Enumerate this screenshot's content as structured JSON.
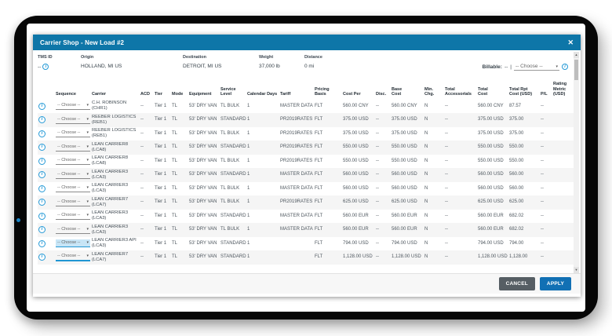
{
  "window": {
    "title": "Carrier Shop - New Load #2"
  },
  "icons": {
    "info": "i",
    "caret": "▾",
    "close": "✕",
    "scroll_up": "▲",
    "scroll_down": "▼"
  },
  "colors": {
    "titlebar": "#0e76a8",
    "accent_blue": "#2499d6",
    "link_blue": "#2196d3",
    "apply_button": "#1170b4",
    "cancel_button": "#565e64",
    "row_alt": "#f5f5f5",
    "dropdown_highlight": "#c7e5f6"
  },
  "summary": {
    "fields": [
      {
        "label": "TMS ID",
        "value": "--"
      },
      {
        "label": "Origin",
        "value": "HOLLAND, MI US"
      },
      {
        "label": "Destination",
        "value": "DETROIT, MI US"
      },
      {
        "label": "Weight",
        "value": "37,000 lb"
      },
      {
        "label": "Distance",
        "value": "0 mi"
      }
    ],
    "billable": {
      "label": "Billable:",
      "value": "--",
      "separator": "|",
      "dropdown": "-- Choose --"
    }
  },
  "table": {
    "choose_label": "-- Choose --",
    "headers": [
      "",
      "Sequence",
      "Carrier",
      "ACD",
      "Tier",
      "Mode",
      "Equipment",
      "Service\nLevel",
      "Calendar Days",
      "Tariff",
      "Pricing Basis",
      "Cost Per",
      "Disc.",
      "Base\nCost",
      "Min. Chg.",
      "Total\nAccessorials",
      "Total\nCost",
      "Total Rpt\nCost (USD)",
      "P/L",
      "Rating\nMetric (USD)"
    ],
    "rows": [
      {
        "carrier": "C.H. ROBINSON",
        "code": "(CHR1)",
        "acd": "--",
        "tier": "Tier 1",
        "mode": "TL",
        "equipment": "53' DRY VAN",
        "service_level": "TL BULK",
        "calendar_days": "1",
        "tariff": "MASTER DATA",
        "pricing_basis": "FLT",
        "cost_per": "560.00 CNY",
        "disc": "--",
        "base_cost": "560.00 CNY",
        "min_chg": "N",
        "total_accessorials": "--",
        "total_cost": "560.00 CNY",
        "total_rpt_cost": "87.57",
        "pl": "--",
        "rating_metric": "",
        "seq_state": "default"
      },
      {
        "carrier": "REEBER LOGISTICS",
        "code": "(REB1)",
        "acd": "--",
        "tier": "Tier 1",
        "mode": "TL",
        "equipment": "53' DRY VAN",
        "service_level": "STANDARD",
        "calendar_days": "1",
        "tariff": "PR2019RATES",
        "pricing_basis": "FLT",
        "cost_per": "375.00 USD",
        "disc": "--",
        "base_cost": "375.00 USD",
        "min_chg": "N",
        "total_accessorials": "--",
        "total_cost": "375.00 USD",
        "total_rpt_cost": "375.00",
        "pl": "--",
        "rating_metric": "",
        "seq_state": "default"
      },
      {
        "carrier": "REEBER LOGISTICS",
        "code": "(REB1)",
        "acd": "--",
        "tier": "Tier 1",
        "mode": "TL",
        "equipment": "53' DRY VAN",
        "service_level": "TL BULK",
        "calendar_days": "1",
        "tariff": "PR2019RATES",
        "pricing_basis": "FLT",
        "cost_per": "375.00 USD",
        "disc": "--",
        "base_cost": "375.00 USD",
        "min_chg": "N",
        "total_accessorials": "--",
        "total_cost": "375.00 USD",
        "total_rpt_cost": "375.00",
        "pl": "--",
        "rating_metric": "",
        "seq_state": "default"
      },
      {
        "carrier": "LEAN CARRIER8",
        "code": "(LCA8)",
        "acd": "--",
        "tier": "Tier 1",
        "mode": "TL",
        "equipment": "53' DRY VAN",
        "service_level": "STANDARD",
        "calendar_days": "1",
        "tariff": "PR2019RATES",
        "pricing_basis": "FLT",
        "cost_per": "550.00 USD",
        "disc": "--",
        "base_cost": "550.00 USD",
        "min_chg": "N",
        "total_accessorials": "--",
        "total_cost": "550.00 USD",
        "total_rpt_cost": "550.00",
        "pl": "--",
        "rating_metric": "",
        "seq_state": "default"
      },
      {
        "carrier": "LEAN CARRIER8",
        "code": "(LCA8)",
        "acd": "--",
        "tier": "Tier 1",
        "mode": "TL",
        "equipment": "53' DRY VAN",
        "service_level": "TL BULK",
        "calendar_days": "1",
        "tariff": "PR2019RATES",
        "pricing_basis": "FLT",
        "cost_per": "550.00 USD",
        "disc": "--",
        "base_cost": "550.00 USD",
        "min_chg": "N",
        "total_accessorials": "--",
        "total_cost": "550.00 USD",
        "total_rpt_cost": "550.00",
        "pl": "--",
        "rating_metric": "",
        "seq_state": "default"
      },
      {
        "carrier": "LEAN CARRIER3",
        "code": "(LCA3)",
        "acd": "--",
        "tier": "Tier 1",
        "mode": "TL",
        "equipment": "53' DRY VAN",
        "service_level": "STANDARD",
        "calendar_days": "1",
        "tariff": "MASTER DATA",
        "pricing_basis": "FLT",
        "cost_per": "560.00 USD",
        "disc": "--",
        "base_cost": "560.00 USD",
        "min_chg": "N",
        "total_accessorials": "--",
        "total_cost": "560.00 USD",
        "total_rpt_cost": "560.00",
        "pl": "--",
        "rating_metric": "",
        "seq_state": "default"
      },
      {
        "carrier": "LEAN CARRIER3",
        "code": "(LCA3)",
        "acd": "--",
        "tier": "Tier 1",
        "mode": "TL",
        "equipment": "53' DRY VAN",
        "service_level": "TL BULK",
        "calendar_days": "1",
        "tariff": "MASTER DATA",
        "pricing_basis": "FLT",
        "cost_per": "560.00 USD",
        "disc": "--",
        "base_cost": "560.00 USD",
        "min_chg": "N",
        "total_accessorials": "--",
        "total_cost": "560.00 USD",
        "total_rpt_cost": "560.00",
        "pl": "--",
        "rating_metric": "",
        "seq_state": "default"
      },
      {
        "carrier": "LEAN CARRIER7",
        "code": "(LCA7)",
        "acd": "--",
        "tier": "Tier 1",
        "mode": "TL",
        "equipment": "53' DRY VAN",
        "service_level": "TL BULK",
        "calendar_days": "1",
        "tariff": "PR2019RATES",
        "pricing_basis": "FLT",
        "cost_per": "625.00 USD",
        "disc": "--",
        "base_cost": "625.00 USD",
        "min_chg": "N",
        "total_accessorials": "--",
        "total_cost": "625.00 USD",
        "total_rpt_cost": "625.00",
        "pl": "--",
        "rating_metric": "",
        "seq_state": "default"
      },
      {
        "carrier": "LEAN CARRIER3",
        "code": "(LCA3)",
        "acd": "--",
        "tier": "Tier 1",
        "mode": "TL",
        "equipment": "53' DRY VAN",
        "service_level": "STANDARD",
        "calendar_days": "1",
        "tariff": "MASTER DATA",
        "pricing_basis": "FLT",
        "cost_per": "560.00 EUR",
        "disc": "--",
        "base_cost": "560.00 EUR",
        "min_chg": "N",
        "total_accessorials": "--",
        "total_cost": "560.00 EUR",
        "total_rpt_cost": "682.02",
        "pl": "--",
        "rating_metric": "",
        "seq_state": "default"
      },
      {
        "carrier": "LEAN CARRIER3",
        "code": "(LCA3)",
        "acd": "--",
        "tier": "Tier 1",
        "mode": "TL",
        "equipment": "53' DRY VAN",
        "service_level": "TL BULK",
        "calendar_days": "1",
        "tariff": "MASTER DATA",
        "pricing_basis": "FLT",
        "cost_per": "560.00 EUR",
        "disc": "--",
        "base_cost": "560.00 EUR",
        "min_chg": "N",
        "total_accessorials": "--",
        "total_cost": "560.00 EUR",
        "total_rpt_cost": "682.02",
        "pl": "--",
        "rating_metric": "",
        "seq_state": "default"
      },
      {
        "carrier": "LEAN CARRIER3 API",
        "code": "(LCA3)",
        "acd": "--",
        "tier": "Tier 1",
        "mode": "TL",
        "equipment": "53' DRY VAN",
        "service_level": "STANDARD",
        "calendar_days": "1",
        "tariff": "",
        "pricing_basis": "FLT",
        "cost_per": "794.00 USD",
        "disc": "--",
        "base_cost": "794.00 USD",
        "min_chg": "N",
        "total_accessorials": "--",
        "total_cost": "794.00 USD",
        "total_rpt_cost": "794.00",
        "pl": "--",
        "rating_metric": "",
        "seq_state": "selected"
      },
      {
        "carrier": "LEAN CARRIER7",
        "code": "(LCA7)",
        "acd": "--",
        "tier": "Tier 1",
        "mode": "TL",
        "equipment": "53' DRY VAN",
        "service_level": "STANDARD",
        "calendar_days": "1",
        "tariff": "",
        "pricing_basis": "FLT",
        "cost_per": "1,128.00 USD",
        "disc": "--",
        "base_cost": "1,128.00 USD",
        "min_chg": "N",
        "total_accessorials": "--",
        "total_cost": "1,128.00 USD",
        "total_rpt_cost": "1,128.00",
        "pl": "--",
        "rating_metric": "",
        "seq_state": "focused"
      }
    ]
  },
  "footer": {
    "cancel": "CANCEL",
    "apply": "APPLY"
  }
}
